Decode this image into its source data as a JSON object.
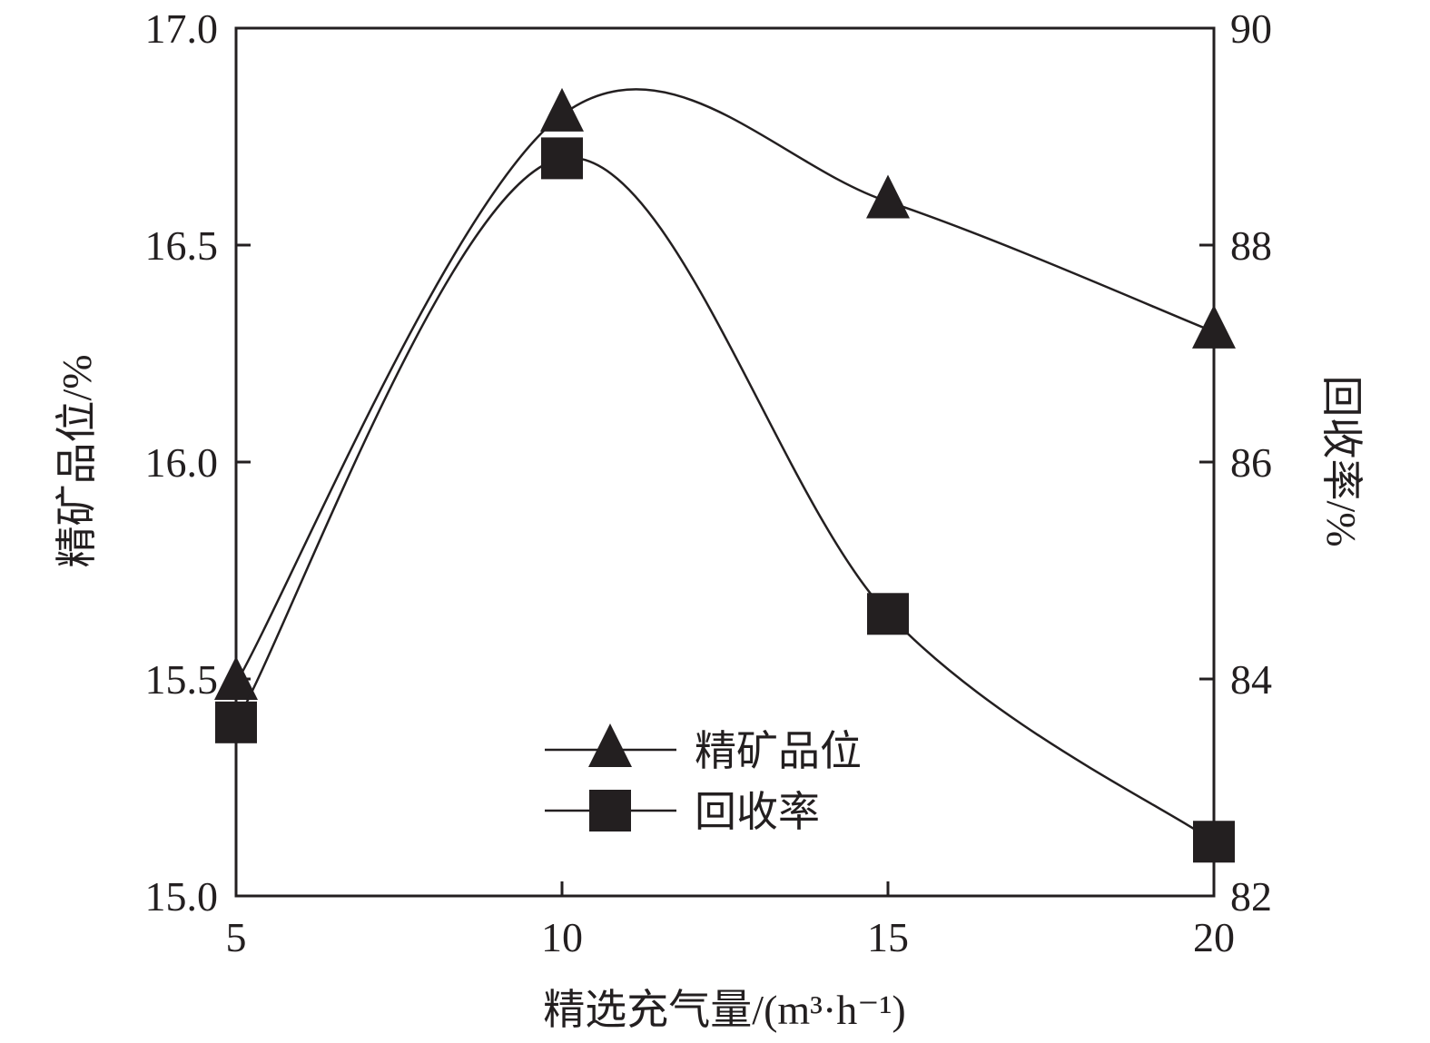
{
  "chart_data": {
    "type": "line",
    "title": "",
    "xlabel": "精选充气量/(m³·h⁻¹)",
    "ylabel_left": "精矿品位/%",
    "ylabel_right": "回收率/%",
    "x": [
      5,
      10,
      15,
      20
    ],
    "xlim": [
      5,
      20
    ],
    "xticks": [
      "5",
      "10",
      "15",
      "20"
    ],
    "ylim_left": [
      15.0,
      17.0
    ],
    "yticks_left": [
      "15.0",
      "15.5",
      "16.0",
      "16.5",
      "17.0"
    ],
    "ylim_right": [
      82,
      90
    ],
    "yticks_right": [
      "82",
      "84",
      "86",
      "88",
      "90"
    ],
    "grid": false,
    "legend_position": "bottom-center",
    "series": [
      {
        "name": "精矿品位",
        "axis": "left",
        "marker": "triangle",
        "values": [
          15.49,
          16.8,
          16.6,
          16.3
        ]
      },
      {
        "name": "回收率",
        "axis": "right",
        "marker": "square",
        "values": [
          83.6,
          88.8,
          84.6,
          82.5
        ]
      }
    ],
    "colors": {
      "line": "#231f20",
      "marker": "#231f20"
    }
  }
}
